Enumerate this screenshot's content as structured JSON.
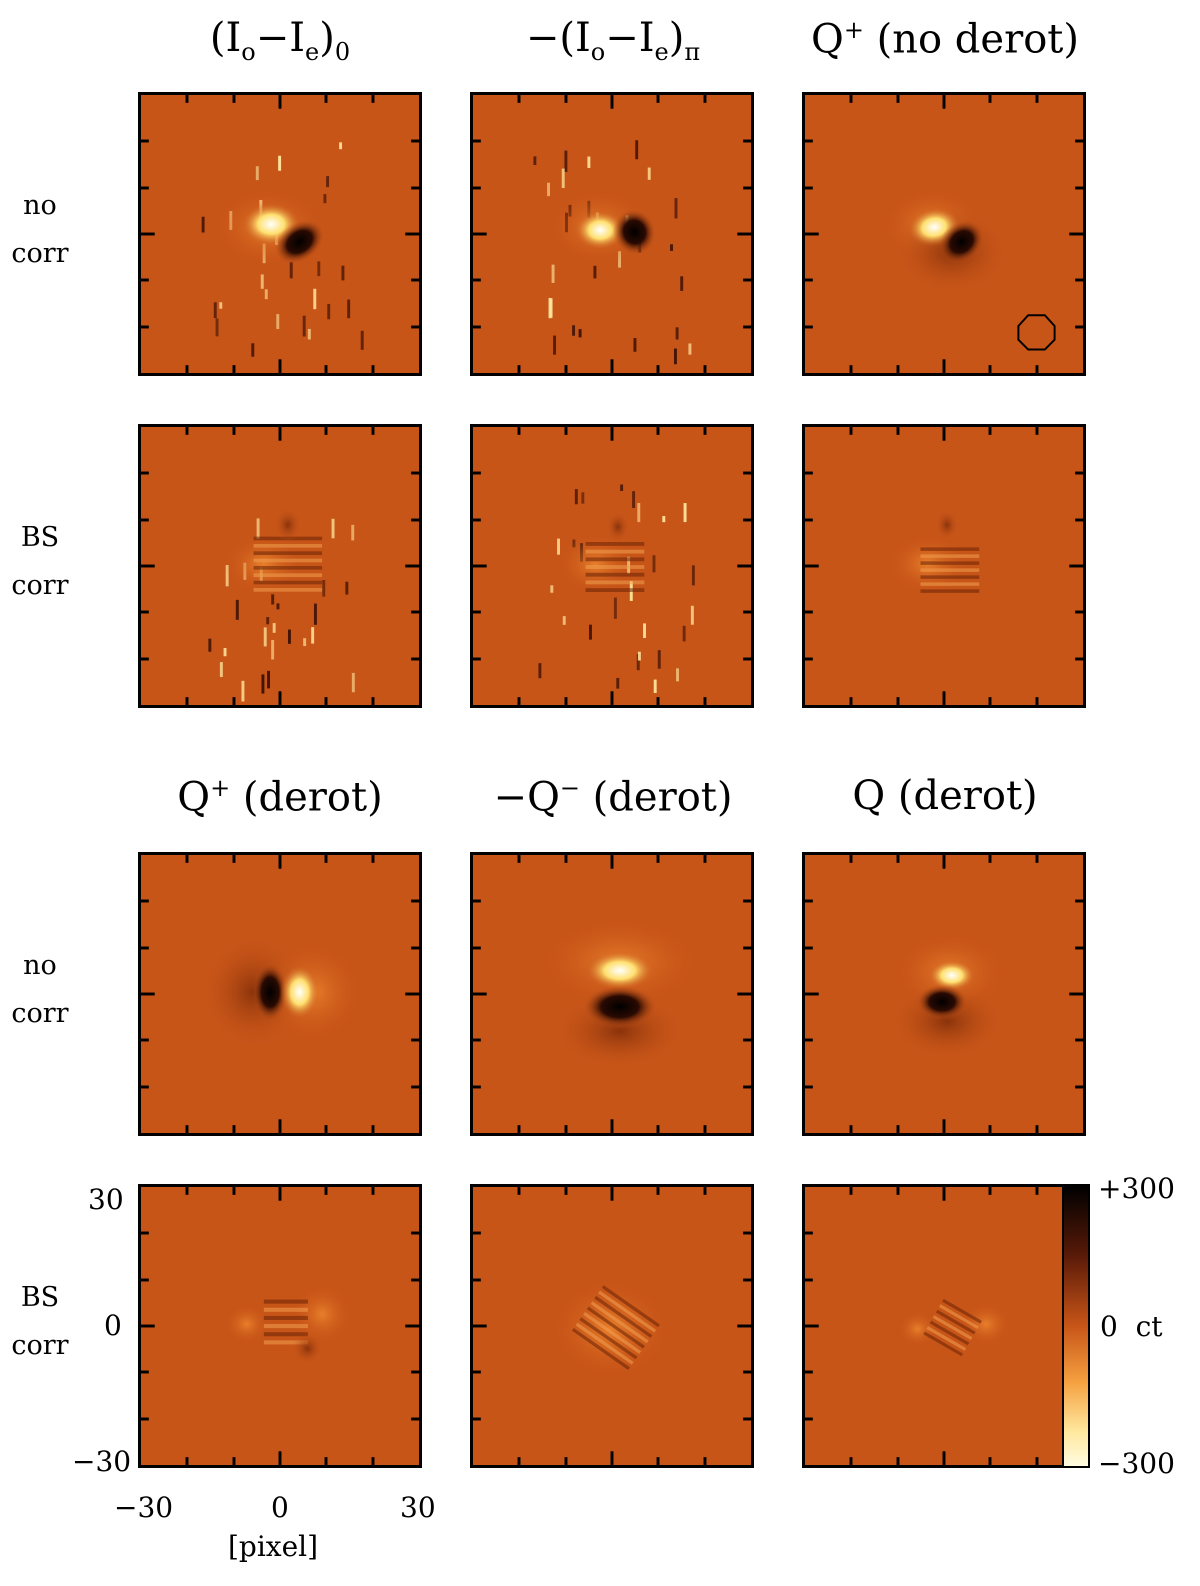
{
  "titles": {
    "top": {
      "c1": {
        "main": "(I",
        "s1": "o",
        "m2": "−I",
        "s2": "e",
        "m3": ")",
        "s3": "0"
      },
      "c2": {
        "main": "−(I",
        "s1": "o",
        "m2": "−I",
        "s2": "e",
        "m3": ")",
        "s3": "π"
      },
      "c3": {
        "main": "Q",
        "sup": "+",
        "rest": " (no derot)"
      }
    },
    "bottom": {
      "c1": {
        "main": "Q",
        "sup": "+",
        "rest": " (derot)"
      },
      "c2": {
        "main": "−Q",
        "sup": "−",
        "rest": " (derot)"
      },
      "c3": {
        "main": "Q",
        "rest": " (derot)"
      }
    }
  },
  "row_labels": {
    "no_corr": {
      "l1": "no",
      "l2": "corr"
    },
    "bs_corr": {
      "l1": "BS",
      "l2": "corr"
    }
  },
  "axes": {
    "xlabel": "[pixel]",
    "x_ticks": [
      "−30",
      "0",
      "30"
    ],
    "y_ticks": [
      "30",
      "0",
      "−30"
    ],
    "range": [
      -30,
      30
    ]
  },
  "colorbar": {
    "max_label": "+300",
    "mid_label": "0  ct",
    "min_label": "−300",
    "range": [
      -300,
      300
    ],
    "colors": [
      "#000000",
      "#c85518",
      "#fffbe0"
    ]
  },
  "colors": {
    "background": "#c85518",
    "positive": "#000000",
    "negative": "#ffffff"
  }
}
